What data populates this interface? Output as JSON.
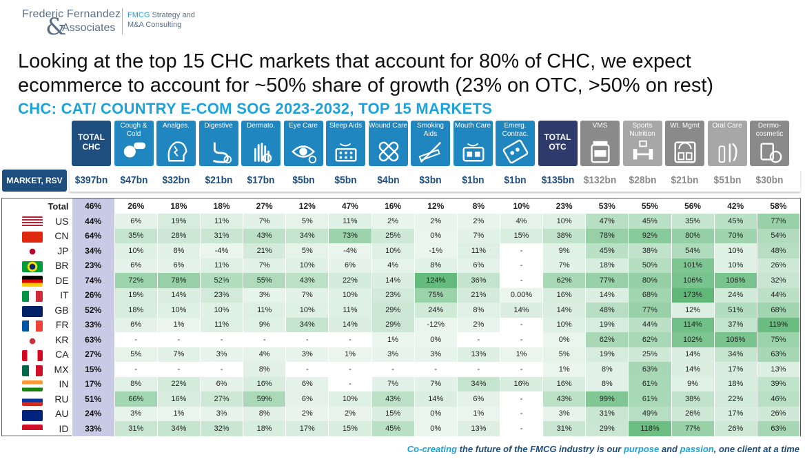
{
  "logo": {
    "name_line1": "Frederic Fernandez",
    "amp": "&",
    "name_line2": "Associates",
    "tag_line1_accent": "FMCG",
    "tag_line1_rest": " Strategy and",
    "tag_line2": "M&A Consulting"
  },
  "headline": "Looking at the top 15 CHC markets that account for 80% of CHC, we expect ecommerce to account for ~50% share of growth (23% on OTC, >50% on rest)",
  "subtitle": "CHC: CAT/ COUNTRY E-COM SOG 2023-2032, TOP 15 MARKETS",
  "market_label": "MARKET, RSV",
  "footer": {
    "p1": "Co-creating",
    "p2": " the future of the FMCG industry is our ",
    "p3": "purpose",
    "p4": " and ",
    "p5": "passion",
    "p6": ", one client at a time"
  },
  "colors": {
    "navy": "#1d4e7d",
    "blue": "#1f86bf",
    "accent": "#1ca3d9",
    "otc": "#2e3a6b",
    "gray": "#8a8a8a",
    "total_col": "#c9cbe6",
    "heat_low": "#eaf5ee",
    "heat_high": "#5fb878"
  },
  "chart_data": {
    "type": "table",
    "title": "CHC: CAT/ COUNTRY E-COM SOG 2023-2032, TOP 15 MARKETS",
    "columns": [
      {
        "label": "TOTAL CHC",
        "icon": "total",
        "rsv": "$397bn"
      },
      {
        "label": "Cough & Cold",
        "icon": "pills-icon",
        "rsv": "$47bn"
      },
      {
        "label": "Analges.",
        "icon": "head-pain-icon",
        "rsv": "$32bn"
      },
      {
        "label": "Digestive",
        "icon": "stomach-icon",
        "rsv": "$21bn"
      },
      {
        "label": "Dermato.",
        "icon": "hand-skin-icon",
        "rsv": "$17bn"
      },
      {
        "label": "Eye Care",
        "icon": "eye-icon",
        "rsv": "$5bn"
      },
      {
        "label": "Sleep Aids",
        "icon": "sleep-pills-icon",
        "rsv": "$5bn"
      },
      {
        "label": "Wound Care",
        "icon": "bandage-icon",
        "rsv": "$4bn"
      },
      {
        "label": "Smoking Aids",
        "icon": "cigarette-icon",
        "rsv": "$3bn"
      },
      {
        "label": "Mouth Care",
        "icon": "mouth-pills-icon",
        "rsv": "$1bn"
      },
      {
        "label": "Emerg. Contrac.",
        "icon": "pill-pack-icon",
        "rsv": "$1bn"
      },
      {
        "label": "TOTAL OTC",
        "icon": "total",
        "rsv": "$135bn"
      },
      {
        "label": "VMS",
        "icon": "vitamin-jar-icon",
        "rsv": "$132bn"
      },
      {
        "label": "Sports Nutrition",
        "icon": "dumbbell-icon",
        "rsv": "$28bn"
      },
      {
        "label": "Wt. Mgmt",
        "icon": "scale-icon",
        "rsv": "$21bn"
      },
      {
        "label": "Oral Care",
        "icon": "toothbrush-icon",
        "rsv": "$51bn"
      },
      {
        "label": "Dermo-cosmetic",
        "icon": "cosmetic-jar-icon",
        "rsv": "$30bn"
      }
    ],
    "rows": [
      {
        "country": "Total",
        "values": [
          "46%",
          "26%",
          "18%",
          "18%",
          "27%",
          "12%",
          "47%",
          "16%",
          "12%",
          "8%",
          "10%",
          "23%",
          "53%",
          "55%",
          "56%",
          "42%",
          "58%"
        ]
      },
      {
        "country": "US",
        "values": [
          "44%",
          "6%",
          "19%",
          "11%",
          "7%",
          "5%",
          "11%",
          "2%",
          "2%",
          "2%",
          "4%",
          "10%",
          "47%",
          "45%",
          "35%",
          "45%",
          "77%"
        ]
      },
      {
        "country": "CN",
        "values": [
          "64%",
          "35%",
          "28%",
          "31%",
          "43%",
          "34%",
          "73%",
          "25%",
          "0%",
          "7%",
          "15%",
          "38%",
          "78%",
          "92%",
          "80%",
          "70%",
          "54%"
        ]
      },
      {
        "country": "JP",
        "values": [
          "34%",
          "10%",
          "8%",
          "-4%",
          "21%",
          "5%",
          "-4%",
          "10%",
          "-1%",
          "11%",
          "-",
          "9%",
          "45%",
          "38%",
          "54%",
          "10%",
          "48%"
        ]
      },
      {
        "country": "BR",
        "values": [
          "23%",
          "6%",
          "6%",
          "11%",
          "7%",
          "10%",
          "6%",
          "4%",
          "8%",
          "6%",
          "-",
          "7%",
          "18%",
          "50%",
          "101%",
          "10%",
          "26%"
        ]
      },
      {
        "country": "DE",
        "values": [
          "74%",
          "72%",
          "78%",
          "52%",
          "55%",
          "43%",
          "22%",
          "14%",
          "124%",
          "36%",
          "-",
          "62%",
          "77%",
          "80%",
          "106%",
          "106%",
          "32%"
        ]
      },
      {
        "country": "IT",
        "values": [
          "26%",
          "19%",
          "14%",
          "23%",
          "3%",
          "7%",
          "10%",
          "23%",
          "75%",
          "21%",
          "0.00%",
          "16%",
          "14%",
          "68%",
          "173%",
          "24%",
          "44%"
        ]
      },
      {
        "country": "GB",
        "values": [
          "52%",
          "18%",
          "10%",
          "10%",
          "11%",
          "10%",
          "11%",
          "29%",
          "24%",
          "8%",
          "14%",
          "14%",
          "48%",
          "77%",
          "12%",
          "51%",
          "68%"
        ]
      },
      {
        "country": "FR",
        "values": [
          "33%",
          "6%",
          "1%",
          "11%",
          "9%",
          "34%",
          "14%",
          "29%",
          "-12%",
          "2%",
          "-",
          "10%",
          "19%",
          "44%",
          "114%",
          "37%",
          "119%"
        ]
      },
      {
        "country": "KR",
        "values": [
          "63%",
          "-",
          "-",
          "-",
          "-",
          "-",
          "-",
          "1%",
          "0%",
          "-",
          "-",
          "0%",
          "62%",
          "62%",
          "102%",
          "106%",
          "75%"
        ]
      },
      {
        "country": "CA",
        "values": [
          "27%",
          "5%",
          "7%",
          "3%",
          "4%",
          "3%",
          "1%",
          "3%",
          "3%",
          "13%",
          "1%",
          "5%",
          "19%",
          "25%",
          "14%",
          "34%",
          "63%"
        ]
      },
      {
        "country": "MX",
        "values": [
          "15%",
          "-",
          "-",
          "-",
          "8%",
          "-",
          "-",
          "-",
          "-",
          "-",
          "-",
          "1%",
          "8%",
          "63%",
          "14%",
          "17%",
          "13%"
        ]
      },
      {
        "country": "IN",
        "values": [
          "17%",
          "8%",
          "22%",
          "6%",
          "16%",
          "6%",
          "-",
          "7%",
          "7%",
          "34%",
          "16%",
          "16%",
          "8%",
          "61%",
          "9%",
          "18%",
          "39%"
        ]
      },
      {
        "country": "RU",
        "values": [
          "51%",
          "66%",
          "16%",
          "27%",
          "59%",
          "6%",
          "10%",
          "43%",
          "14%",
          "6%",
          "-",
          "43%",
          "99%",
          "61%",
          "38%",
          "22%",
          "46%"
        ]
      },
      {
        "country": "AU",
        "values": [
          "24%",
          "3%",
          "1%",
          "3%",
          "8%",
          "2%",
          "2%",
          "15%",
          "0%",
          "1%",
          "-",
          "3%",
          "31%",
          "49%",
          "26%",
          "17%",
          "26%"
        ]
      },
      {
        "country": "ID",
        "values": [
          "33%",
          "31%",
          "34%",
          "32%",
          "18%",
          "17%",
          "15%",
          "45%",
          "0%",
          "13%",
          "-",
          "31%",
          "29%",
          "118%",
          "77%",
          "26%",
          "63%"
        ]
      }
    ]
  }
}
